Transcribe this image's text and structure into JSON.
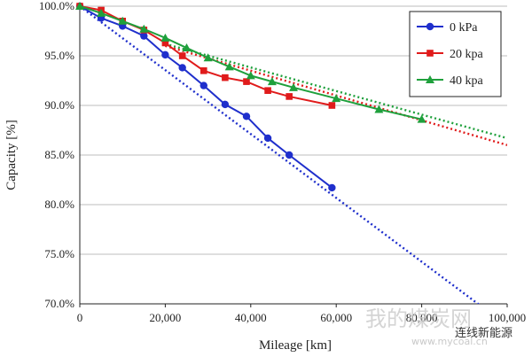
{
  "chart_data": {
    "type": "line",
    "xlabel": "Mileage [km]",
    "ylabel": "Capacity [%]",
    "xlim": [
      0,
      100000
    ],
    "ylim": [
      70,
      100
    ],
    "x_ticks": [
      0,
      20000,
      40000,
      60000,
      80000,
      100000
    ],
    "x_tick_labels": [
      "0",
      "20,000",
      "40,000",
      "60,000",
      "80,000",
      "100,000"
    ],
    "y_ticks": [
      70,
      75,
      80,
      85,
      90,
      95,
      100
    ],
    "y_tick_labels": [
      "70.0%",
      "75.0%",
      "80.0%",
      "85.0%",
      "90.0%",
      "95.0%",
      "100.0%"
    ],
    "grid": "horizontal",
    "legend_position": "top-right",
    "series": [
      {
        "name": "0 kPa",
        "color": "#1f2fcc",
        "marker": "circle",
        "x": [
          0,
          5000,
          10000,
          15000,
          20000,
          24000,
          29000,
          34000,
          39000,
          44000,
          49000,
          59000
        ],
        "y": [
          100,
          98.8,
          98.0,
          97.0,
          95.1,
          93.8,
          92.0,
          90.1,
          88.9,
          86.7,
          85.0,
          81.7
        ],
        "trend": {
          "x": [
            0,
            100000
          ],
          "y": [
            100,
            67.8
          ]
        }
      },
      {
        "name": "20 kpa",
        "color": "#e01b1b",
        "marker": "square",
        "x": [
          0,
          5000,
          10000,
          15000,
          20000,
          24000,
          29000,
          34000,
          39000,
          44000,
          49000,
          59000
        ],
        "y": [
          100,
          99.6,
          98.5,
          97.6,
          96.3,
          95.0,
          93.5,
          92.8,
          92.4,
          91.5,
          90.9,
          90.0
        ],
        "trend": {
          "x": [
            20000,
            100000
          ],
          "y": [
            96.0,
            86.0
          ]
        }
      },
      {
        "name": "40 kpa",
        "color": "#1fa03c",
        "marker": "triangle",
        "x": [
          0,
          5000,
          10000,
          15000,
          20000,
          25000,
          30000,
          35000,
          40000,
          45000,
          50000,
          60000,
          70000,
          80000
        ],
        "y": [
          100,
          99.3,
          98.5,
          97.7,
          96.8,
          95.8,
          94.8,
          93.9,
          93.0,
          92.4,
          91.8,
          90.7,
          89.6,
          88.6
        ],
        "trend": {
          "x": [
            20000,
            100000
          ],
          "y": [
            96.2,
            86.7
          ]
        }
      }
    ]
  },
  "watermark": {
    "cn_site": "我的煤炭网",
    "site_url": "www.mycoal.cn",
    "tag": "连线新能源"
  }
}
